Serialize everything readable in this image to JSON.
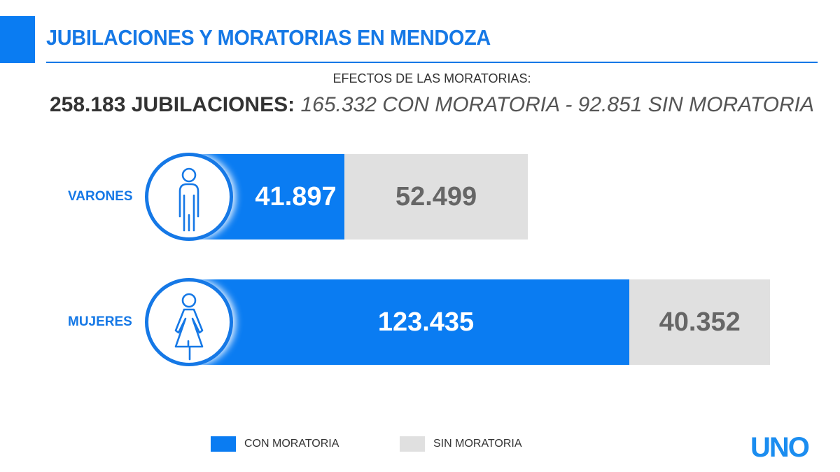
{
  "header": {
    "title": "JUBILACIONES Y MORATORIAS EN MENDOZA",
    "subtitle": "EFECTOS DE LAS MORATORIAS:",
    "summary_bold": "258.183 JUBILACIONES:",
    "summary_italic": "165.332 CON MORATORIA - 92.851 SIN MORATORIA"
  },
  "chart_data": {
    "type": "bar",
    "orientation": "horizontal",
    "stacked": true,
    "categories": [
      "VARONES",
      "MUJERES"
    ],
    "category_icons": [
      "man-icon",
      "woman-icon"
    ],
    "series": [
      {
        "name": "CON MORATORIA",
        "values": [
          41897,
          123435
        ],
        "labels": [
          "41.897",
          "123.435"
        ],
        "color": "#0a7cf2"
      },
      {
        "name": "SIN MORATORIA",
        "values": [
          52499,
          40352
        ],
        "labels": [
          "52.499",
          "40.352"
        ],
        "color": "#e0e0e0"
      }
    ],
    "legend": "bottom"
  },
  "logo": "UNO"
}
